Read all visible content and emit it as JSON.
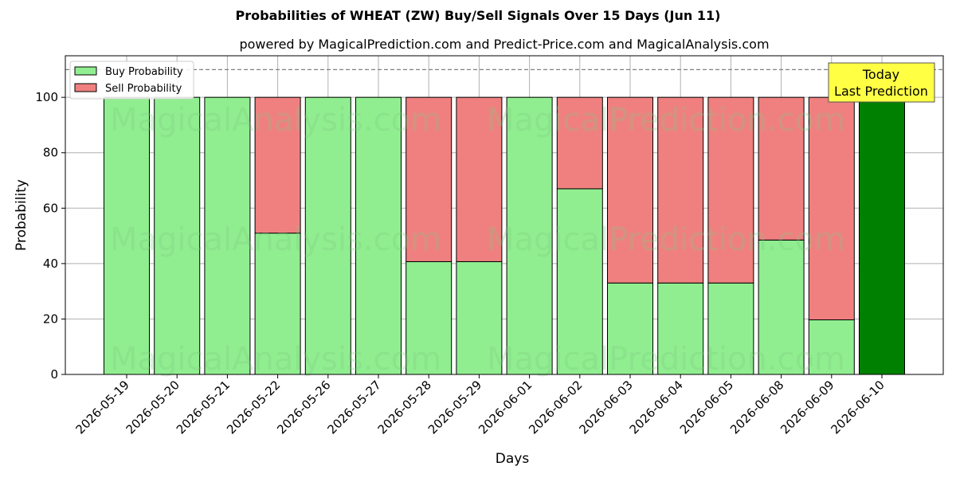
{
  "chart_data": {
    "type": "bar",
    "title": "Probabilities of WHEAT (ZW) Buy/Sell Signals Over 15 Days (Jun 11)",
    "subtitle": "powered by MagicalPrediction.com and Predict-Price.com and MagicalAnalysis.com",
    "xlabel": "Days",
    "ylabel": "Probability",
    "ylim": [
      0,
      115
    ],
    "yticks": [
      0,
      20,
      40,
      60,
      80,
      100
    ],
    "reference_line": 110,
    "grid": true,
    "legend_placement": "upper-left",
    "categories": [
      "2026-05-19",
      "2026-05-20",
      "2026-05-21",
      "2026-05-22",
      "2026-05-26",
      "2026-05-27",
      "2026-05-28",
      "2026-05-29",
      "2026-06-01",
      "2026-06-02",
      "2026-06-03",
      "2026-06-04",
      "2026-06-05",
      "2026-06-08",
      "2026-06-09",
      "2026-06-10"
    ],
    "series": [
      {
        "name": "Buy Probability",
        "color": "#90ee90",
        "values": [
          100,
          100,
          100,
          51,
          100,
          100,
          40.7,
          40.7,
          100,
          67,
          33,
          33,
          33,
          48.5,
          19.7,
          100
        ]
      },
      {
        "name": "Sell Probability",
        "color": "#f08080",
        "values": [
          0,
          0,
          0,
          49,
          0,
          0,
          59.3,
          59.3,
          0,
          33,
          67,
          67,
          67,
          51.5,
          80.3,
          0
        ]
      }
    ],
    "highlight": {
      "category": "2026-06-10",
      "color": "#008000"
    },
    "annotation": {
      "lines": [
        "Today",
        "Last Prediction"
      ],
      "background": "#ffff44"
    },
    "watermarks": [
      "MagicalAnalysis.com",
      "MagicalPrediction.com"
    ]
  }
}
